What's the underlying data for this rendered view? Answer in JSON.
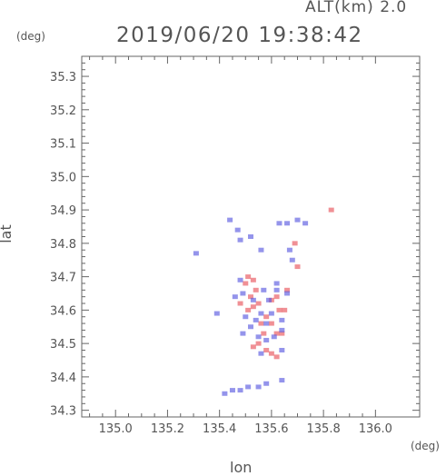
{
  "header": {
    "altitude_label": "ALT(km) 2.0",
    "datetime": "2019/06/20 19:38:42"
  },
  "chart_data": {
    "type": "scatter",
    "xlabel": "lon",
    "ylabel": "lat",
    "x_unit": "(deg)",
    "y_unit": "(deg)",
    "xlim": [
      134.87,
      136.17
    ],
    "ylim": [
      34.28,
      35.36
    ],
    "xticks": [
      "135.0",
      "135.2",
      "135.4",
      "135.6",
      "135.8",
      "136.0"
    ],
    "yticks": [
      "34.3",
      "34.4",
      "34.5",
      "34.6",
      "34.7",
      "34.8",
      "34.9",
      "35.0",
      "35.1",
      "35.2",
      "35.3"
    ],
    "grid": false,
    "colors": {
      "positive": "#e8545c",
      "negative": "#5a5ae0",
      "axis": "#666666"
    },
    "series": [
      {
        "color": "positive",
        "points": [
          [
            135.51,
            34.7
          ],
          [
            135.53,
            34.69
          ],
          [
            135.5,
            34.68
          ],
          [
            135.55,
            34.62
          ],
          [
            135.53,
            34.61
          ],
          [
            135.58,
            34.58
          ],
          [
            135.56,
            34.56
          ],
          [
            135.51,
            34.6
          ],
          [
            135.6,
            34.56
          ],
          [
            135.62,
            34.53
          ],
          [
            135.55,
            34.5
          ],
          [
            135.53,
            34.49
          ],
          [
            135.6,
            34.47
          ],
          [
            135.62,
            34.46
          ],
          [
            135.58,
            34.48
          ],
          [
            135.52,
            34.64
          ],
          [
            135.62,
            34.64
          ],
          [
            135.63,
            34.6
          ],
          [
            135.66,
            34.66
          ],
          [
            135.65,
            34.6
          ],
          [
            135.7,
            34.73
          ],
          [
            135.69,
            34.8
          ],
          [
            135.83,
            34.9
          ],
          [
            135.57,
            34.53
          ],
          [
            135.54,
            34.66
          ],
          [
            135.48,
            34.62
          ],
          [
            135.6,
            34.63
          ],
          [
            135.64,
            34.53
          ]
        ]
      },
      {
        "color": "negative",
        "points": [
          [
            135.44,
            34.87
          ],
          [
            135.47,
            34.84
          ],
          [
            135.48,
            34.81
          ],
          [
            135.52,
            34.82
          ],
          [
            135.56,
            34.78
          ],
          [
            135.63,
            34.86
          ],
          [
            135.66,
            34.86
          ],
          [
            135.7,
            34.87
          ],
          [
            135.73,
            34.86
          ],
          [
            135.48,
            34.69
          ],
          [
            135.46,
            34.64
          ],
          [
            135.49,
            34.65
          ],
          [
            135.53,
            34.63
          ],
          [
            135.57,
            34.66
          ],
          [
            135.59,
            34.63
          ],
          [
            135.62,
            34.66
          ],
          [
            135.66,
            34.65
          ],
          [
            135.5,
            34.58
          ],
          [
            135.56,
            34.59
          ],
          [
            135.58,
            34.56
          ],
          [
            135.64,
            34.57
          ],
          [
            135.64,
            34.54
          ],
          [
            135.52,
            34.55
          ],
          [
            135.55,
            34.52
          ],
          [
            135.58,
            34.51
          ],
          [
            135.56,
            34.47
          ],
          [
            135.64,
            34.48
          ],
          [
            135.61,
            34.52
          ],
          [
            135.6,
            34.59
          ],
          [
            135.67,
            34.78
          ],
          [
            135.68,
            34.75
          ],
          [
            135.39,
            34.59
          ],
          [
            135.31,
            34.77
          ],
          [
            135.42,
            34.35
          ],
          [
            135.45,
            34.36
          ],
          [
            135.48,
            34.36
          ],
          [
            135.51,
            34.37
          ],
          [
            135.55,
            34.37
          ],
          [
            135.58,
            34.38
          ],
          [
            135.64,
            34.39
          ],
          [
            135.62,
            34.68
          ],
          [
            135.54,
            34.57
          ],
          [
            135.49,
            34.53
          ]
        ]
      }
    ]
  }
}
